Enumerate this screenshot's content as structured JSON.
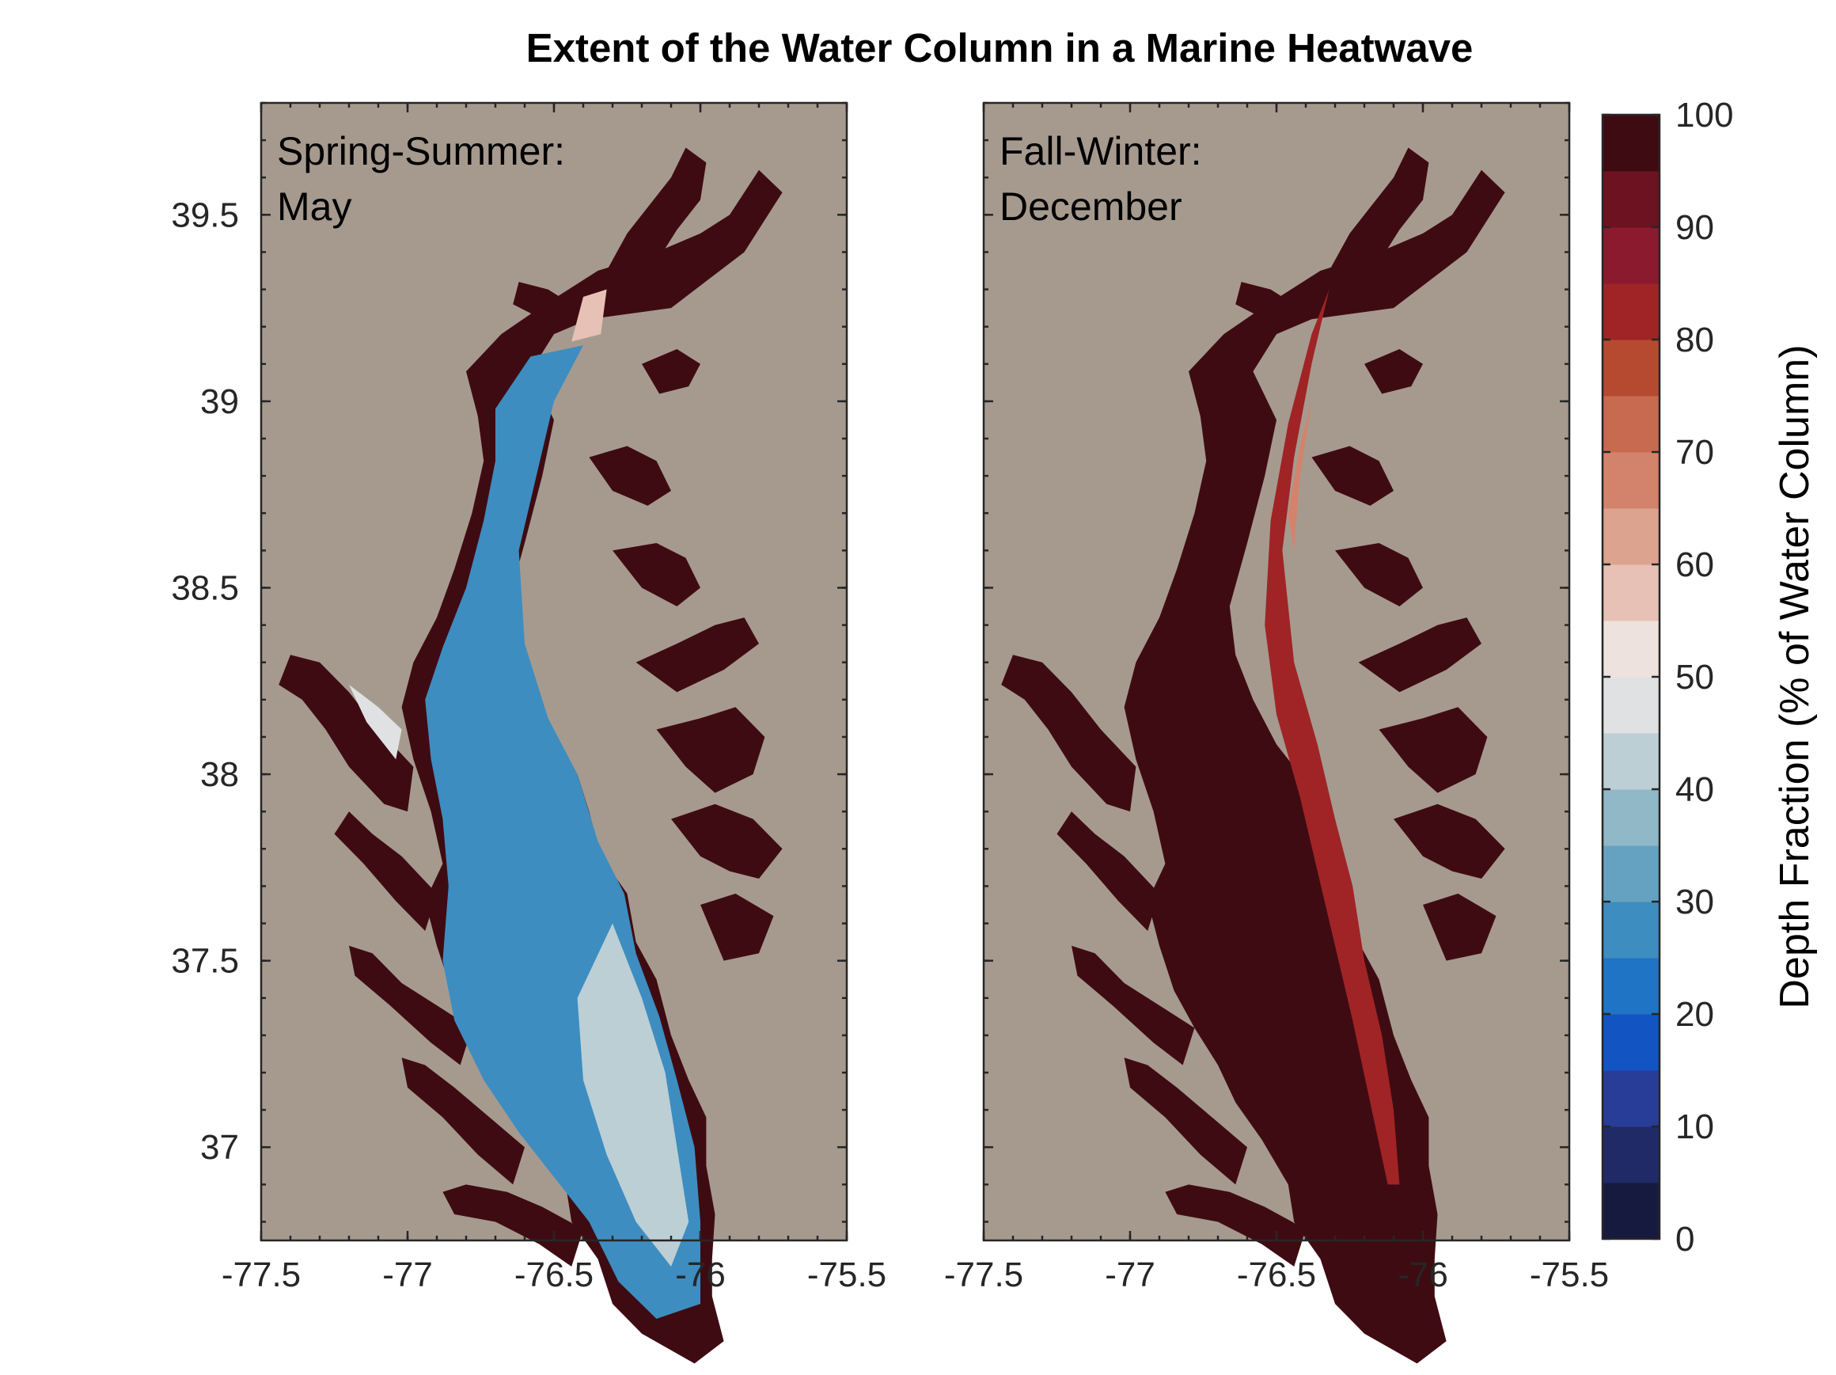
{
  "title": "Extent of the Water Column in a Marine Heatwave",
  "colors": {
    "land": "#a69a8f",
    "background": "#ffffff",
    "axis": "#262626"
  },
  "chart_data": {
    "type": "heatmap",
    "title": "Extent of the Water Column in a Marine Heatwave",
    "colorbar": {
      "label": "Depth Fraction (% of Water Column)",
      "range": [
        0,
        100
      ],
      "step": 5,
      "tick_labels": [
        "0",
        "10",
        "20",
        "30",
        "40",
        "50",
        "60",
        "70",
        "80",
        "90",
        "100"
      ],
      "colors": [
        "#161a3f",
        "#1f2a66",
        "#283d98",
        "#1254c2",
        "#1f74c6",
        "#3d8dc0",
        "#65a2c2",
        "#91b8c6",
        "#bccfd5",
        "#dfe1e2",
        "#ede2de",
        "#e7c1b5",
        "#dca38f",
        "#d3836b",
        "#c86a50",
        "#b64a30",
        "#a02425",
        "#8b1a2f",
        "#6c1221",
        "#3f0b12"
      ]
    },
    "panels": [
      {
        "label_line1": "Spring-Summer:",
        "label_line2": "May",
        "xlim": [
          -77.5,
          -75.5
        ],
        "ylim": [
          36.75,
          39.8
        ],
        "x_tick_labels": [
          "-77.5",
          "-77",
          "-76.5",
          "-76",
          "-75.5"
        ],
        "y_tick_labels": [
          "39.5",
          "39",
          "38.5",
          "38",
          "37.5",
          "37"
        ]
      },
      {
        "label_line1": "Fall-Winter:",
        "label_line2": "December",
        "xlim": [
          -77.5,
          -75.5
        ],
        "ylim": [
          36.75,
          39.8
        ],
        "x_tick_labels": [
          "-77.5",
          "-77",
          "-76.5",
          "-76",
          "-75.5"
        ],
        "y_tick_labels": []
      }
    ]
  }
}
